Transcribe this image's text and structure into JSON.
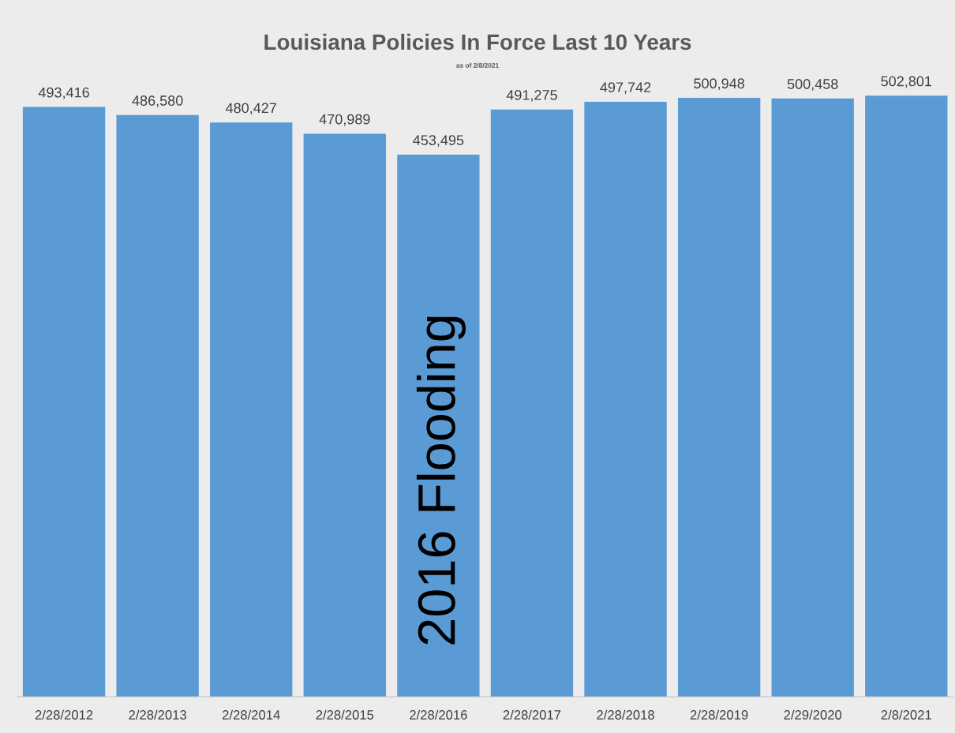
{
  "chart_data": {
    "type": "bar",
    "title": "Louisiana Policies In Force Last 10 Years",
    "subtitle": "as of 2/8/2021",
    "categories": [
      "2/28/2012",
      "2/28/2013",
      "2/28/2014",
      "2/28/2015",
      "2/28/2016",
      "2/28/2017",
      "2/28/2018",
      "2/28/2019",
      "2/29/2020",
      "2/8/2021"
    ],
    "values": [
      493416,
      486580,
      480427,
      470989,
      453495,
      491275,
      497742,
      500948,
      500458,
      502801
    ],
    "value_labels": [
      "493,416",
      "486,580",
      "480,427",
      "470,989",
      "453,495",
      "491,275",
      "497,742",
      "500,948",
      "500,458",
      "502,801"
    ],
    "color": "#5b9bd5",
    "grid": false,
    "legend": false,
    "tick_labels": "x",
    "annotations": [
      "2016 Flooding"
    ]
  }
}
